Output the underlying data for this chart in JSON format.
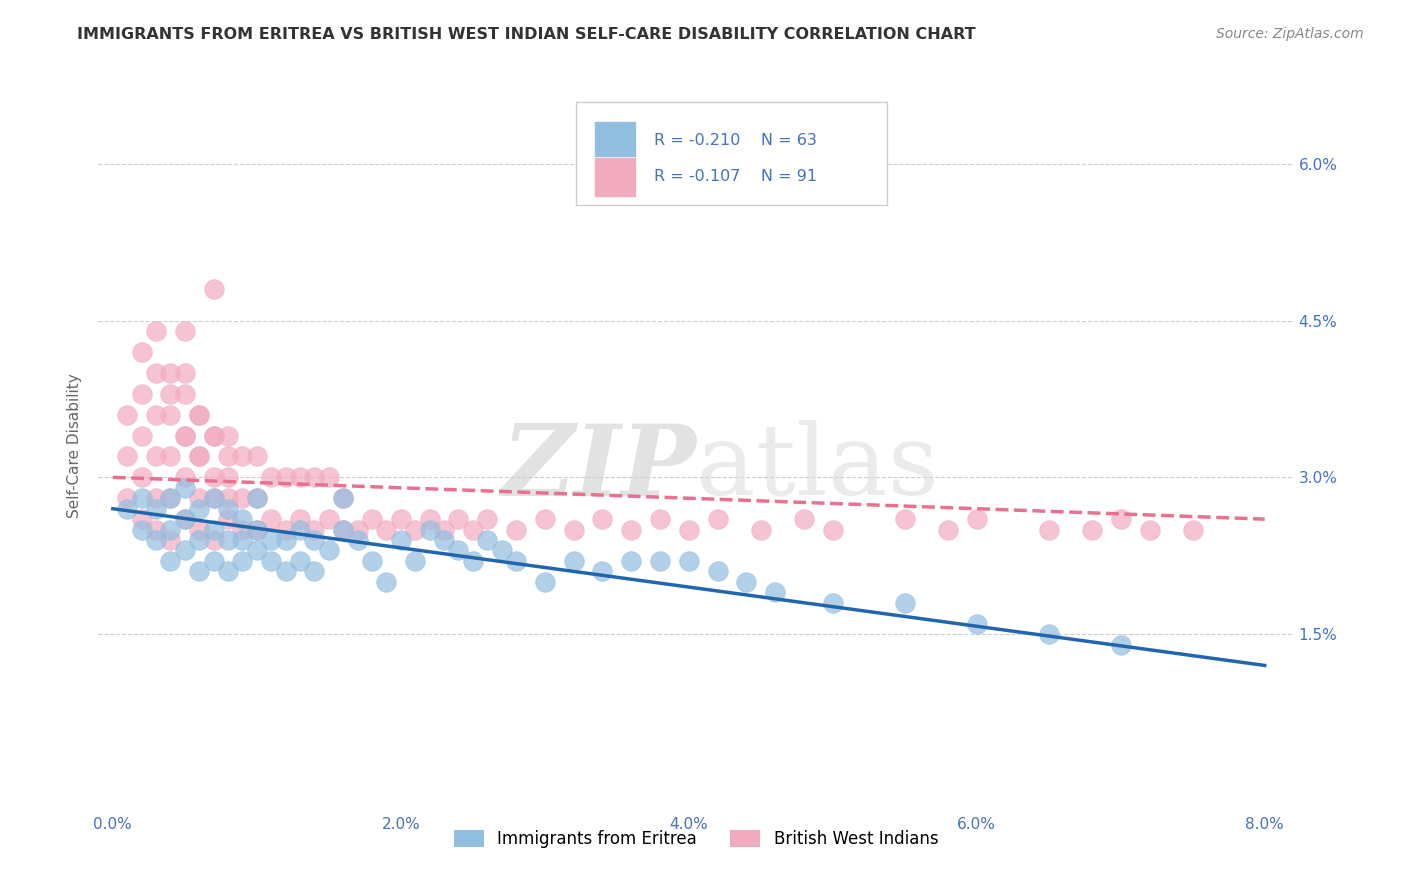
{
  "title": "IMMIGRANTS FROM ERITREA VS BRITISH WEST INDIAN SELF-CARE DISABILITY CORRELATION CHART",
  "source": "Source: ZipAtlas.com",
  "xlabel": "",
  "ylabel": "Self-Care Disability",
  "xlim": [
    -0.001,
    0.082
  ],
  "ylim": [
    -0.002,
    0.068
  ],
  "xticks": [
    0.0,
    0.02,
    0.04,
    0.06,
    0.08
  ],
  "xtick_labels": [
    "0.0%",
    "2.0%",
    "4.0%",
    "6.0%",
    "8.0%"
  ],
  "yticks": [
    0.0,
    0.015,
    0.03,
    0.045,
    0.06
  ],
  "ytick_labels": [
    "",
    "1.5%",
    "3.0%",
    "4.5%",
    "6.0%"
  ],
  "blue_color": "#92BEE0",
  "pink_color": "#F2AABF",
  "blue_line_color": "#2166AC",
  "pink_line_color": "#E87090",
  "legend_R_blue": "R = -0.210",
  "legend_N_blue": "N = 63",
  "legend_R_pink": "R = -0.107",
  "legend_N_pink": "N = 91",
  "legend_label_blue": "Immigrants from Eritrea",
  "legend_label_pink": "British West Indians",
  "watermark_zip": "ZIP",
  "watermark_atlas": "atlas",
  "blue_scatter_x": [
    0.001,
    0.002,
    0.002,
    0.003,
    0.003,
    0.004,
    0.004,
    0.004,
    0.005,
    0.005,
    0.005,
    0.006,
    0.006,
    0.006,
    0.007,
    0.007,
    0.007,
    0.008,
    0.008,
    0.008,
    0.009,
    0.009,
    0.009,
    0.01,
    0.01,
    0.01,
    0.011,
    0.011,
    0.012,
    0.012,
    0.013,
    0.013,
    0.014,
    0.014,
    0.015,
    0.016,
    0.016,
    0.017,
    0.018,
    0.019,
    0.02,
    0.021,
    0.022,
    0.023,
    0.024,
    0.025,
    0.026,
    0.027,
    0.028,
    0.03,
    0.032,
    0.034,
    0.036,
    0.038,
    0.04,
    0.042,
    0.044,
    0.046,
    0.05,
    0.055,
    0.06,
    0.065,
    0.07
  ],
  "blue_scatter_y": [
    0.027,
    0.025,
    0.028,
    0.024,
    0.027,
    0.022,
    0.025,
    0.028,
    0.023,
    0.026,
    0.029,
    0.021,
    0.024,
    0.027,
    0.022,
    0.025,
    0.028,
    0.021,
    0.024,
    0.027,
    0.022,
    0.024,
    0.026,
    0.023,
    0.025,
    0.028,
    0.022,
    0.024,
    0.021,
    0.024,
    0.022,
    0.025,
    0.021,
    0.024,
    0.023,
    0.025,
    0.028,
    0.024,
    0.022,
    0.02,
    0.024,
    0.022,
    0.025,
    0.024,
    0.023,
    0.022,
    0.024,
    0.023,
    0.022,
    0.02,
    0.022,
    0.021,
    0.022,
    0.022,
    0.022,
    0.021,
    0.02,
    0.019,
    0.018,
    0.018,
    0.016,
    0.015,
    0.014
  ],
  "pink_scatter_x": [
    0.001,
    0.001,
    0.002,
    0.002,
    0.002,
    0.003,
    0.003,
    0.003,
    0.003,
    0.004,
    0.004,
    0.004,
    0.004,
    0.005,
    0.005,
    0.005,
    0.005,
    0.005,
    0.006,
    0.006,
    0.006,
    0.006,
    0.007,
    0.007,
    0.007,
    0.007,
    0.008,
    0.008,
    0.008,
    0.009,
    0.009,
    0.009,
    0.01,
    0.01,
    0.01,
    0.011,
    0.011,
    0.012,
    0.012,
    0.013,
    0.013,
    0.014,
    0.014,
    0.015,
    0.015,
    0.016,
    0.016,
    0.017,
    0.018,
    0.019,
    0.02,
    0.021,
    0.022,
    0.023,
    0.024,
    0.025,
    0.026,
    0.028,
    0.03,
    0.032,
    0.034,
    0.036,
    0.038,
    0.04,
    0.042,
    0.045,
    0.048,
    0.05,
    0.055,
    0.058,
    0.06,
    0.065,
    0.068,
    0.07,
    0.072,
    0.075,
    0.001,
    0.002,
    0.002,
    0.003,
    0.003,
    0.004,
    0.004,
    0.005,
    0.005,
    0.006,
    0.006,
    0.007,
    0.007,
    0.008,
    0.008
  ],
  "pink_scatter_y": [
    0.028,
    0.032,
    0.026,
    0.03,
    0.034,
    0.025,
    0.028,
    0.032,
    0.036,
    0.024,
    0.028,
    0.032,
    0.038,
    0.026,
    0.03,
    0.034,
    0.04,
    0.044,
    0.025,
    0.028,
    0.032,
    0.036,
    0.024,
    0.028,
    0.034,
    0.048,
    0.026,
    0.03,
    0.034,
    0.025,
    0.028,
    0.032,
    0.025,
    0.028,
    0.032,
    0.026,
    0.03,
    0.025,
    0.03,
    0.026,
    0.03,
    0.025,
    0.03,
    0.026,
    0.03,
    0.025,
    0.028,
    0.025,
    0.026,
    0.025,
    0.026,
    0.025,
    0.026,
    0.025,
    0.026,
    0.025,
    0.026,
    0.025,
    0.026,
    0.025,
    0.026,
    0.025,
    0.026,
    0.025,
    0.026,
    0.025,
    0.026,
    0.025,
    0.026,
    0.025,
    0.026,
    0.025,
    0.025,
    0.026,
    0.025,
    0.025,
    0.036,
    0.038,
    0.042,
    0.04,
    0.044,
    0.036,
    0.04,
    0.034,
    0.038,
    0.032,
    0.036,
    0.03,
    0.034,
    0.028,
    0.032
  ],
  "blue_trend_x": [
    0.0,
    0.08
  ],
  "blue_trend_y": [
    0.027,
    0.012
  ],
  "pink_trend_x": [
    0.0,
    0.08
  ],
  "pink_trend_y": [
    0.03,
    0.026
  ],
  "background_color": "#ffffff",
  "grid_color": "#cccccc",
  "axis_label_color": "#4472C4",
  "title_color": "#333333"
}
